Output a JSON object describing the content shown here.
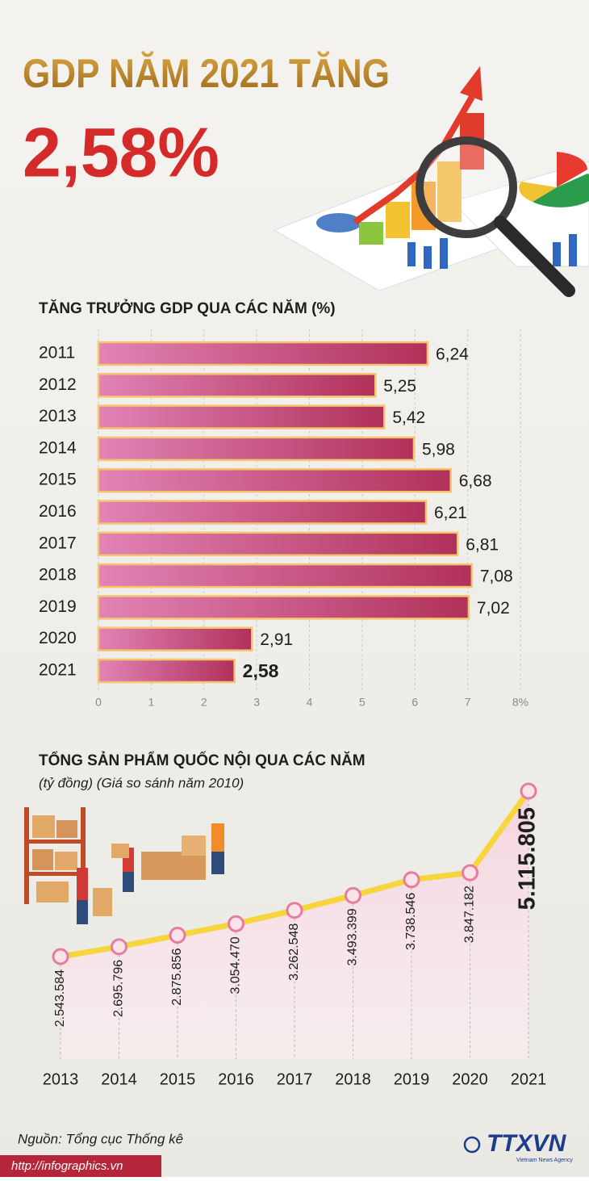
{
  "header": {
    "title": "GDP NĂM 2021 TĂNG",
    "highlight": "2,58%"
  },
  "chart_data": [
    {
      "type": "hbar",
      "title": "TĂNG TRƯỞNG GDP QUA CÁC NĂM (%)",
      "categories": [
        "2011",
        "2012",
        "2013",
        "2014",
        "2015",
        "2016",
        "2017",
        "2018",
        "2019",
        "2020",
        "2021"
      ],
      "values": [
        6.24,
        5.25,
        5.42,
        5.98,
        6.68,
        6.21,
        6.81,
        7.08,
        7.02,
        2.91,
        2.58
      ],
      "value_labels": [
        "6,24",
        "5,25",
        "5,42",
        "5,98",
        "6,68",
        "6,21",
        "6,81",
        "7,08",
        "7,02",
        "2,91",
        "2,58"
      ],
      "xlim": [
        0,
        8
      ],
      "xticks": [
        0,
        1,
        2,
        3,
        4,
        5,
        6,
        7,
        {
          "value": 8,
          "label": "8%"
        }
      ],
      "grid": true,
      "color": "#b8355f"
    },
    {
      "type": "line",
      "title": "TỔNG SẢN PHẨM QUỐC NỘI QUA CÁC NĂM",
      "subtitle": "(tỷ đồng) (Giá so sánh năm 2010)",
      "categories": [
        "2013",
        "2014",
        "2015",
        "2016",
        "2017",
        "2018",
        "2019",
        "2020",
        "2021"
      ],
      "values": [
        2543584,
        2695796,
        2875856,
        3054470,
        3262548,
        3493399,
        3738546,
        3847182,
        5115805
      ],
      "value_labels": [
        "2.543.584",
        "2.695.796",
        "2.875.856",
        "3.054.470",
        "3.262.548",
        "3.493.399",
        "3.738.546",
        "3.847.182",
        "5.115.805"
      ],
      "color": "#f7d53c"
    }
  ],
  "footer": {
    "source": "Nguồn: Tổng cục Thống kê",
    "url": "http://infographics.vn",
    "logo": "TTXVN",
    "agency": "Vietnam News Agency"
  }
}
